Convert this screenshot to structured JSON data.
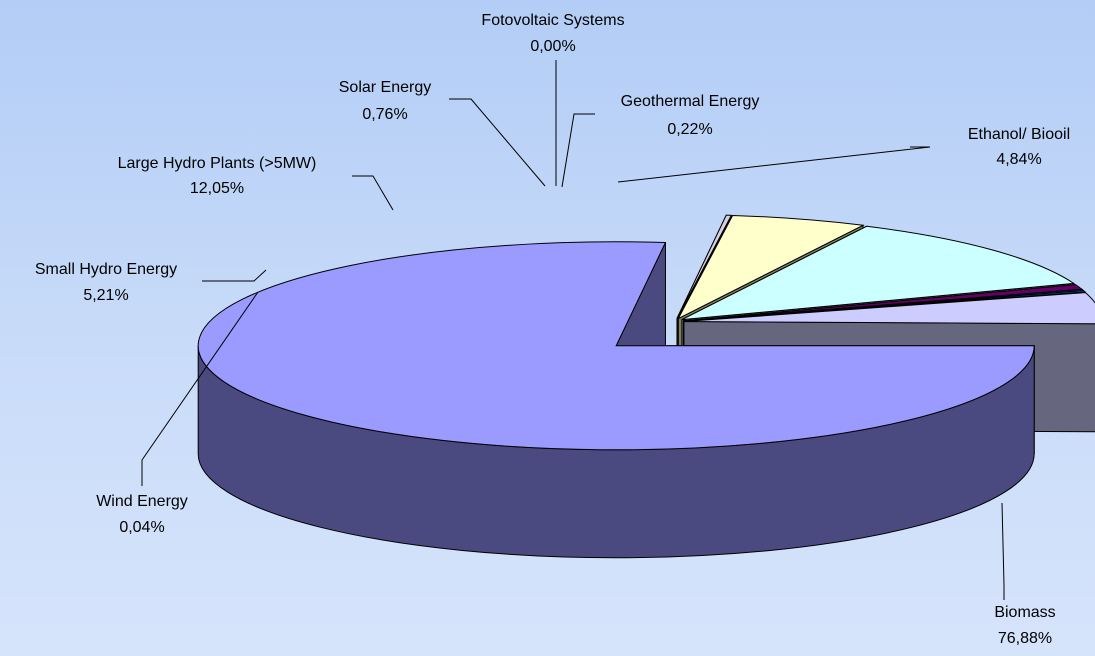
{
  "chart_data": {
    "type": "pie",
    "style": "3d-exploded",
    "title": "",
    "legend": "none",
    "slices": [
      {
        "name": "Biomass",
        "label": "76,88%",
        "value": 76.88,
        "color": "#9a9aff",
        "side_color": "#4a4a80"
      },
      {
        "name": "Wind Energy",
        "label": "0,04%",
        "value": 0.04,
        "color": "#d8cfe0",
        "side_color": "#4a1c33"
      },
      {
        "name": "Small Hydro Energy",
        "label": "5,21%",
        "value": 5.21,
        "color": "#ffffcc",
        "side_color": "#807f60"
      },
      {
        "name": "Large Hydro Plants (>5MW)",
        "label": "12,05%",
        "value": 12.05,
        "color": "#ccffff",
        "side_color": "#5f807e"
      },
      {
        "name": "Solar Energy",
        "label": "0,76%",
        "value": 0.76,
        "color": "#660066",
        "side_color": "#330033"
      },
      {
        "name": "Fotovoltaic Systems",
        "label": "0,00%",
        "value": 0.0,
        "color": "#0066cc",
        "side_color": "#003366"
      },
      {
        "name": "Geothermal Energy",
        "label": "0,22%",
        "value": 0.22,
        "color": "#0066cc",
        "side_color": "#003366"
      },
      {
        "name": "Ethanol/ Biooil",
        "label": "4,84%",
        "value": 4.84,
        "color": "#ccccff",
        "side_color": "#66667f"
      }
    ]
  }
}
